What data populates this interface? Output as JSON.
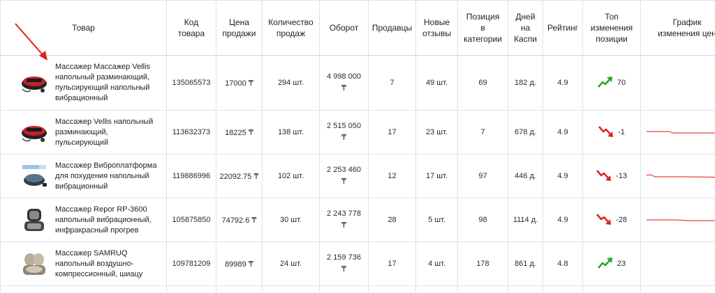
{
  "headers": {
    "product": "Товар",
    "code": [
      "Код",
      "товара"
    ],
    "price": [
      "Цена",
      "продажи"
    ],
    "qty": [
      "Количество",
      "продаж"
    ],
    "turnover": "Оборот",
    "sellers": "Продавцы",
    "reviews": [
      "Новые",
      "отзывы"
    ],
    "position": [
      "Позиция",
      "в",
      "категории"
    ],
    "days": [
      "Дней",
      "на",
      "Каспи"
    ],
    "rating": "Рейтинг",
    "top_change": [
      "Топ",
      "изменения",
      "позиции"
    ],
    "graph": [
      "График",
      "изменения цен"
    ]
  },
  "rows": [
    {
      "name": [
        "Массажер Массажер Vellis",
        "напольный разминающий,",
        "пульсирующий напольный",
        "вибрационный"
      ],
      "code": "135065573",
      "price": "17000 ₸",
      "qty": "294 шт.",
      "turnover": [
        "4 998 000",
        "₸"
      ],
      "sellers": "7",
      "reviews": "49 шт.",
      "position": "69",
      "days": "182 д.",
      "rating": "4.9",
      "change": "70",
      "trend": "up",
      "trend_color": "#22aa22",
      "image": "vibration-platform-red"
    },
    {
      "name": [
        "Массажер Vellis напольный",
        "разминающий,",
        "пульсирующий"
      ],
      "code": "113632373",
      "price": "18225 ₸",
      "qty": "138 шт.",
      "turnover": [
        "2 515 050",
        "₸"
      ],
      "sellers": "17",
      "reviews": "23 шт.",
      "position": "7",
      "days": "678 д.",
      "rating": "4.9",
      "change": "-1",
      "trend": "down",
      "trend_color": "#e02020",
      "image": "vibration-platform-red"
    },
    {
      "name": [
        "Массажер Виброплатформа",
        "для похудения напольный",
        "вибрационный"
      ],
      "code": "119886996",
      "price": "22092.75 ₸",
      "qty": "102 шт.",
      "turnover": [
        "2 253 460",
        "₸"
      ],
      "sellers": "12",
      "reviews": "17 шт.",
      "position": "97",
      "days": "446 д.",
      "rating": "4.9",
      "change": "-13",
      "trend": "down",
      "trend_color": "#e02020",
      "image": "vibration-platform-grey"
    },
    {
      "name": [
        "Массажер Repor RP-3600",
        "напольный вибрационный,",
        "инфракрасный прогрев"
      ],
      "code": "105875850",
      "price": "74792.6 ₸",
      "qty": "30 шт.",
      "turnover": [
        "2 243 778",
        "₸"
      ],
      "sellers": "28",
      "reviews": "5 шт.",
      "position": "98",
      "days": "1114 д.",
      "rating": "4.9",
      "change": "-28",
      "trend": "down",
      "trend_color": "#e02020",
      "image": "foot-massager-dark"
    },
    {
      "name": [
        "Массажер SAMRUQ",
        "напольный воздушно-",
        "компрессионный, шиацу"
      ],
      "code": "109781209",
      "price": "89989 ₸",
      "qty": "24 шт.",
      "turnover": [
        "2 159 736",
        "₸"
      ],
      "sellers": "17",
      "reviews": "4 шт.",
      "position": "178",
      "days": "861 д.",
      "rating": "4.8",
      "change": "23",
      "trend": "up",
      "trend_color": "#22aa22",
      "image": "foot-massager-beige"
    }
  ],
  "price_graph_color": "#e04040",
  "annotation_arrow_color": "#e02020"
}
